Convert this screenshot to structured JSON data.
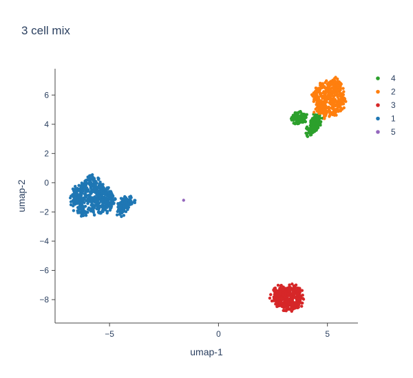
{
  "chart_data": {
    "type": "scatter",
    "title": "3 cell mix",
    "xlabel": "umap-1",
    "ylabel": "umap-2",
    "xlim": [
      -7.5,
      6.4
    ],
    "ylim": [
      -9.6,
      7.8
    ],
    "xticks": [
      -5,
      0,
      5
    ],
    "xtick_labels": [
      "−5",
      "0",
      "5"
    ],
    "yticks": [
      -8,
      -6,
      -4,
      -2,
      0,
      2,
      4,
      6
    ],
    "ytick_labels": [
      "−8",
      "−6",
      "−4",
      "−2",
      "0",
      "2",
      "4",
      "6"
    ],
    "grid": false,
    "legend_position": "top-right",
    "series": [
      {
        "name": "4",
        "color": "#2ca02c",
        "points": [
          [
            3.5,
            4.4
          ],
          [
            3.6,
            4.5
          ],
          [
            3.65,
            4.4
          ],
          [
            3.7,
            4.5
          ],
          [
            3.75,
            4.45
          ],
          [
            3.85,
            4.4
          ],
          [
            4.25,
            3.5
          ],
          [
            4.3,
            3.65
          ],
          [
            4.35,
            3.8
          ],
          [
            4.4,
            3.95
          ],
          [
            4.45,
            4.1
          ],
          [
            4.5,
            4.25
          ],
          [
            4.5,
            4.35
          ]
        ]
      },
      {
        "name": "2",
        "color": "#ff7f0e",
        "points": [
          [
            4.7,
            5.2
          ],
          [
            4.65,
            4.9
          ],
          [
            4.9,
            4.8
          ],
          [
            5.1,
            4.9
          ],
          [
            5.3,
            5.0
          ],
          [
            5.5,
            5.2
          ],
          [
            5.6,
            5.6
          ],
          [
            5.6,
            6.0
          ],
          [
            5.55,
            6.4
          ],
          [
            5.4,
            6.8
          ],
          [
            5.1,
            6.8
          ],
          [
            4.8,
            6.6
          ],
          [
            4.55,
            6.3
          ],
          [
            4.5,
            5.9
          ],
          [
            4.6,
            5.5
          ],
          [
            5.0,
            5.8
          ],
          [
            5.2,
            6.2
          ],
          [
            4.9,
            6.1
          ],
          [
            5.3,
            5.6
          ],
          [
            4.8,
            5.4
          ]
        ]
      },
      {
        "name": "3",
        "color": "#d62728",
        "points": [
          [
            2.6,
            -7.9
          ],
          [
            2.7,
            -7.6
          ],
          [
            2.8,
            -7.35
          ],
          [
            3.0,
            -7.3
          ],
          [
            3.3,
            -7.3
          ],
          [
            3.5,
            -7.4
          ],
          [
            3.6,
            -7.6
          ],
          [
            3.65,
            -7.9
          ],
          [
            3.6,
            -8.2
          ],
          [
            3.4,
            -8.4
          ],
          [
            3.1,
            -8.4
          ],
          [
            2.8,
            -8.3
          ],
          [
            3.1,
            -7.8
          ],
          [
            3.3,
            -8.0
          ],
          [
            2.9,
            -8.0
          ],
          [
            3.2,
            -7.6
          ]
        ]
      },
      {
        "name": "1",
        "color": "#1f77b4",
        "points": [
          [
            -6.6,
            -1.2
          ],
          [
            -6.55,
            -0.8
          ],
          [
            -6.4,
            -0.5
          ],
          [
            -6.2,
            -0.3
          ],
          [
            -5.9,
            0.2
          ],
          [
            -5.7,
            0.0
          ],
          [
            -5.5,
            -0.3
          ],
          [
            -5.3,
            -0.4
          ],
          [
            -5.05,
            -0.7
          ],
          [
            -5.0,
            -1.0
          ],
          [
            -5.0,
            -1.4
          ],
          [
            -5.2,
            -1.7
          ],
          [
            -5.5,
            -1.8
          ],
          [
            -5.8,
            -1.9
          ],
          [
            -6.2,
            -1.9
          ],
          [
            -6.45,
            -1.7
          ],
          [
            -5.9,
            -1.1
          ],
          [
            -5.6,
            -1.3
          ],
          [
            -6.1,
            -0.8
          ],
          [
            -5.4,
            -0.9
          ],
          [
            -5.8,
            -0.5
          ],
          [
            -6.3,
            -1.4
          ],
          [
            -5.3,
            -1.2
          ],
          [
            -4.5,
            -1.9
          ],
          [
            -4.4,
            -1.7
          ],
          [
            -4.3,
            -1.5
          ],
          [
            -4.2,
            -1.3
          ],
          [
            -4.1,
            -1.2
          ],
          [
            -4.35,
            -1.35
          ]
        ]
      },
      {
        "name": "5",
        "color": "#9467bd",
        "points": [
          [
            -1.6,
            -1.2
          ]
        ]
      }
    ]
  }
}
